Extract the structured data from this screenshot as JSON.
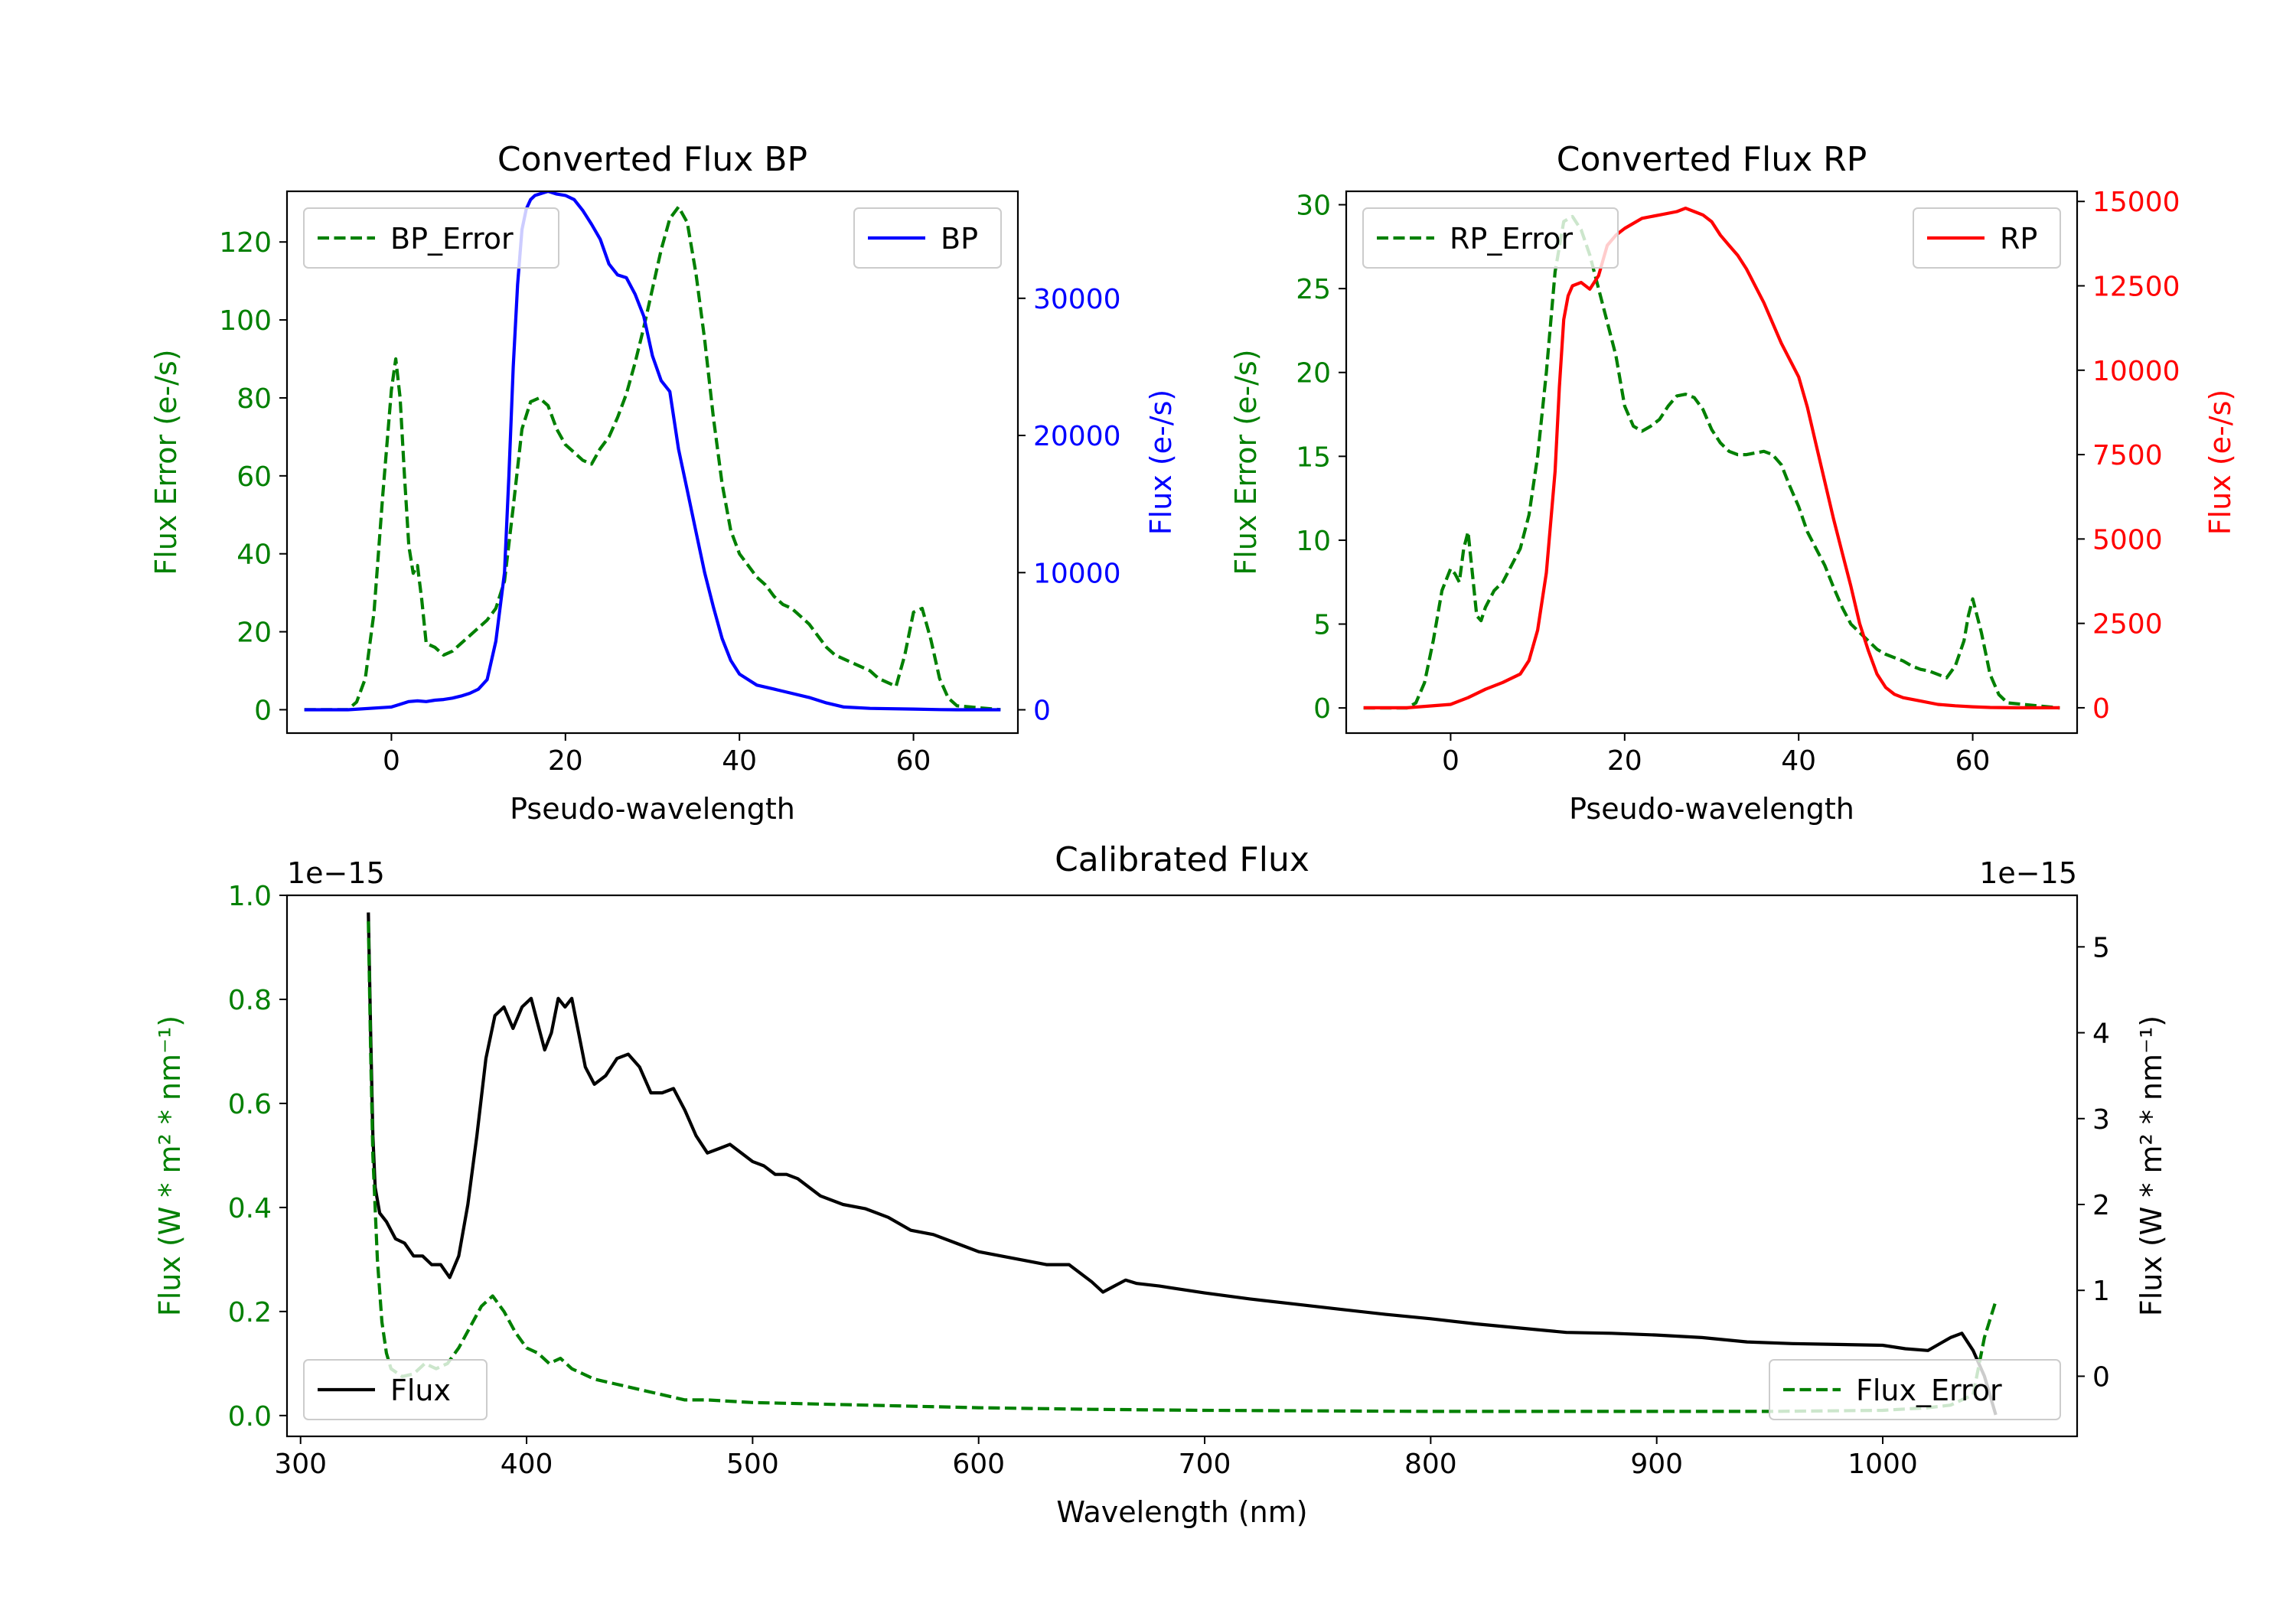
{
  "colors": {
    "green": "#008000",
    "blue": "#0000ff",
    "red": "#ff0000",
    "black": "#000000"
  },
  "chart_data": [
    {
      "id": "bp",
      "type": "line",
      "title": "Converted Flux BP",
      "xlabel": "Pseudo-wavelength",
      "xlim": [
        -12,
        72
      ],
      "xticks": [
        0,
        20,
        40,
        60
      ],
      "xtick_labels": [
        "0",
        "20",
        "40",
        "60"
      ],
      "left_axis": {
        "label": "Flux Error (e-/s)",
        "color": "#008000",
        "ylim": [
          -6,
          133
        ],
        "ticks": [
          0,
          20,
          40,
          60,
          80,
          100,
          120
        ],
        "tick_labels": [
          "0",
          "20",
          "40",
          "60",
          "80",
          "100",
          "120"
        ]
      },
      "right_axis": {
        "label": "Flux (e-/s)",
        "color": "#0000ff",
        "ylim": [
          -1700,
          37800
        ],
        "ticks": [
          0,
          10000,
          20000,
          30000
        ],
        "tick_labels": [
          "0",
          "10000",
          "20000",
          "30000"
        ]
      },
      "series": [
        {
          "name": "BP_Error",
          "axis": "left",
          "style": "dashed",
          "color": "#008000",
          "x": [
            -10,
            -5,
            -4,
            -3,
            -2,
            -1,
            0,
            0.5,
            1,
            1.5,
            2,
            2.5,
            3,
            3.5,
            4,
            5,
            6,
            7,
            8,
            9,
            10,
            11,
            12,
            13,
            14,
            15,
            16,
            17,
            18,
            19,
            20,
            21,
            22,
            23,
            24,
            25,
            26,
            27,
            28,
            29,
            30,
            31,
            32,
            33,
            34,
            35,
            36,
            37,
            38,
            39,
            40,
            41,
            42,
            43,
            44,
            45,
            46,
            47,
            48,
            49,
            50,
            51,
            52,
            53,
            54,
            55,
            56,
            57,
            58,
            59,
            60,
            61,
            62,
            63,
            64,
            65,
            70
          ],
          "values": [
            0,
            0,
            2,
            8,
            25,
            55,
            82,
            90,
            80,
            60,
            42,
            35,
            37,
            28,
            17,
            16,
            14,
            15,
            17,
            19,
            21,
            23,
            26,
            33,
            52,
            72,
            79,
            80,
            78,
            72,
            68,
            66,
            64,
            63,
            67,
            70,
            75,
            81,
            89,
            98,
            108,
            118,
            126,
            129,
            125,
            112,
            95,
            75,
            58,
            46,
            40,
            37,
            34,
            32,
            29,
            27,
            26,
            24,
            22,
            19,
            16,
            14,
            13,
            12,
            11,
            10,
            8,
            7,
            6,
            14,
            25,
            26,
            18,
            8,
            3,
            1,
            0
          ]
        },
        {
          "name": "BP",
          "axis": "right",
          "style": "solid",
          "color": "#0000ff",
          "x": [
            -10,
            -5,
            0,
            1,
            2,
            3,
            4,
            5,
            6,
            7,
            8,
            9,
            10,
            11,
            12,
            13,
            13.5,
            14,
            14.5,
            15,
            15.5,
            16,
            16.5,
            17,
            18,
            19,
            20,
            21,
            22,
            23,
            24,
            25,
            26,
            27,
            28,
            29,
            30,
            31,
            32,
            33,
            34,
            35,
            36,
            37,
            38,
            39,
            40,
            42,
            44,
            46,
            48,
            50,
            52,
            55,
            60,
            63,
            65,
            70
          ],
          "values": [
            0,
            0,
            200,
            400,
            600,
            650,
            600,
            700,
            750,
            850,
            1000,
            1200,
            1500,
            2200,
            5000,
            10000,
            17000,
            25000,
            31000,
            35000,
            36500,
            37200,
            37500,
            37600,
            37800,
            37600,
            37500,
            37200,
            36400,
            35400,
            34300,
            32500,
            31700,
            31500,
            30300,
            28700,
            25800,
            24000,
            23200,
            19000,
            16000,
            13000,
            10000,
            7500,
            5200,
            3600,
            2600,
            1800,
            1500,
            1200,
            900,
            500,
            200,
            100,
            50,
            10,
            0,
            0
          ]
        }
      ],
      "legends": [
        {
          "entries": [
            "BP_Error"
          ],
          "position": "upper left"
        },
        {
          "entries": [
            "BP"
          ],
          "position": "upper right"
        }
      ]
    },
    {
      "id": "rp",
      "type": "line",
      "title": "Converted Flux RP",
      "xlabel": "Pseudo-wavelength",
      "xlim": [
        -12,
        72
      ],
      "xticks": [
        0,
        20,
        40,
        60
      ],
      "xtick_labels": [
        "0",
        "20",
        "40",
        "60"
      ],
      "left_axis": {
        "label": "Flux Error (e-/s)",
        "color": "#008000",
        "ylim": [
          -1.5,
          30.8
        ],
        "ticks": [
          0,
          5,
          10,
          15,
          20,
          25,
          30
        ],
        "tick_labels": [
          "0",
          "5",
          "10",
          "15",
          "20",
          "25",
          "30"
        ]
      },
      "right_axis": {
        "label": "Flux (e-/s)",
        "color": "#ff0000",
        "ylim": [
          -750,
          15300
        ],
        "ticks": [
          0,
          2500,
          5000,
          7500,
          10000,
          12500,
          15000
        ],
        "tick_labels": [
          "0",
          "2500",
          "5000",
          "7500",
          "10000",
          "12500",
          "15000"
        ]
      },
      "series": [
        {
          "name": "RP_Error",
          "axis": "left",
          "style": "dashed",
          "color": "#008000",
          "x": [
            -10,
            -5,
            -4,
            -3,
            -2,
            -1,
            0,
            0.5,
            1,
            1.5,
            2,
            2.5,
            3,
            3.5,
            4,
            5,
            6,
            7,
            8,
            9,
            10,
            11,
            12,
            13,
            14,
            15,
            16,
            17,
            18,
            19,
            20,
            21,
            22,
            23,
            24,
            25,
            26,
            27,
            28,
            29,
            30,
            31,
            32,
            33,
            34,
            35,
            36,
            37,
            38,
            39,
            40,
            41,
            42,
            43,
            44,
            45,
            46,
            47,
            48,
            49,
            50,
            51,
            52,
            53,
            54,
            55,
            56,
            57,
            58,
            59,
            59.5,
            60,
            61,
            62,
            63,
            64,
            70
          ],
          "values": [
            0,
            0,
            0.3,
            1.5,
            4,
            7,
            8.3,
            8,
            7.5,
            9.5,
            10.5,
            8,
            5.5,
            5.2,
            6,
            7,
            7.5,
            8.5,
            9.5,
            11.5,
            15,
            20,
            26,
            29,
            29.3,
            28.5,
            27,
            25,
            23,
            21,
            18,
            16.8,
            16.5,
            16.8,
            17.2,
            18,
            18.6,
            18.7,
            18.5,
            17.8,
            16.6,
            15.8,
            15.3,
            15.1,
            15.1,
            15.2,
            15.3,
            15.1,
            14.5,
            13.2,
            12,
            10.5,
            9.5,
            8.5,
            7.2,
            6,
            5,
            4.5,
            4,
            3.5,
            3.2,
            3,
            2.8,
            2.5,
            2.3,
            2.2,
            2,
            1.8,
            2.5,
            4,
            5.5,
            6.5,
            4.5,
            2,
            0.8,
            0.3,
            0
          ]
        },
        {
          "name": "RP",
          "axis": "right",
          "style": "solid",
          "color": "#ff0000",
          "x": [
            -10,
            -5,
            0,
            2,
            4,
            6,
            8,
            9,
            10,
            11,
            12,
            12.5,
            13,
            13.5,
            14,
            15,
            16,
            17,
            18,
            19,
            20,
            22,
            24,
            26,
            27,
            28,
            29,
            30,
            31,
            32,
            33,
            34,
            36,
            38,
            40,
            41,
            42,
            43,
            44,
            45,
            46,
            47,
            48,
            49,
            50,
            51,
            52,
            54,
            56,
            58,
            60,
            62,
            65,
            70
          ],
          "values": [
            0,
            0,
            100,
            300,
            550,
            750,
            1000,
            1400,
            2300,
            4000,
            7000,
            9500,
            11500,
            12200,
            12500,
            12600,
            12400,
            12800,
            13700,
            14000,
            14200,
            14500,
            14600,
            14700,
            14800,
            14700,
            14600,
            14400,
            14000,
            13700,
            13400,
            13000,
            12000,
            10800,
            9800,
            8900,
            7800,
            6700,
            5600,
            4600,
            3600,
            2500,
            1700,
            1000,
            600,
            400,
            300,
            200,
            100,
            60,
            30,
            10,
            0,
            0
          ]
        }
      ],
      "legends": [
        {
          "entries": [
            "RP_Error"
          ],
          "position": "upper left"
        },
        {
          "entries": [
            "RP"
          ],
          "position": "upper right"
        }
      ]
    },
    {
      "id": "cal",
      "type": "line",
      "title": "Calibrated Flux",
      "xlabel": "Wavelength (nm)",
      "xlim": [
        294,
        1086
      ],
      "xticks": [
        300,
        400,
        500,
        600,
        700,
        800,
        900,
        1000
      ],
      "xtick_labels": [
        "300",
        "400",
        "500",
        "600",
        "700",
        "800",
        "900",
        "1000"
      ],
      "left_axis": {
        "label": "Flux (W * m² * nm⁻¹)",
        "color": "#008000",
        "offset_text": "1e−15",
        "ylim": [
          -0.04,
          1.0
        ],
        "ticks": [
          0.0,
          0.2,
          0.4,
          0.6,
          0.8,
          1.0
        ],
        "tick_labels": [
          "0.0",
          "0.2",
          "0.4",
          "0.6",
          "0.8",
          "1.0"
        ]
      },
      "right_axis": {
        "label": "Flux (W * m² * nm⁻¹)",
        "color": "#000000",
        "offset_text": "1e−15",
        "ylim": [
          -0.7,
          5.6
        ],
        "ticks": [
          0,
          1,
          2,
          3,
          4,
          5
        ],
        "tick_labels": [
          "0",
          "1",
          "2",
          "3",
          "4",
          "5"
        ]
      },
      "series": [
        {
          "name": "Flux",
          "axis": "right",
          "style": "solid",
          "color": "#000000",
          "x": [
            330,
            331,
            332,
            333,
            335,
            338,
            342,
            346,
            350,
            354,
            358,
            362,
            366,
            370,
            374,
            378,
            382,
            386,
            390,
            394,
            398,
            402,
            405,
            408,
            411,
            414,
            417,
            420,
            423,
            426,
            430,
            435,
            440,
            445,
            450,
            455,
            460,
            465,
            470,
            475,
            480,
            485,
            490,
            495,
            500,
            505,
            510,
            515,
            520,
            525,
            530,
            540,
            550,
            560,
            570,
            580,
            590,
            600,
            610,
            620,
            630,
            640,
            645,
            650,
            655,
            660,
            665,
            670,
            680,
            700,
            720,
            740,
            760,
            780,
            800,
            820,
            840,
            860,
            880,
            900,
            920,
            940,
            960,
            980,
            1000,
            1010,
            1020,
            1030,
            1035,
            1040,
            1045,
            1050
          ],
          "values": [
            5.4,
            4.0,
            2.8,
            2.2,
            1.9,
            1.8,
            1.6,
            1.55,
            1.4,
            1.4,
            1.3,
            1.3,
            1.15,
            1.4,
            2.0,
            2.8,
            3.7,
            4.2,
            4.3,
            4.05,
            4.3,
            4.4,
            4.1,
            3.8,
            4.0,
            4.4,
            4.3,
            4.4,
            4.0,
            3.6,
            3.4,
            3.5,
            3.7,
            3.75,
            3.6,
            3.3,
            3.3,
            3.35,
            3.1,
            2.8,
            2.6,
            2.65,
            2.7,
            2.6,
            2.5,
            2.45,
            2.35,
            2.35,
            2.3,
            2.2,
            2.1,
            2.0,
            1.95,
            1.85,
            1.7,
            1.65,
            1.55,
            1.45,
            1.4,
            1.35,
            1.3,
            1.3,
            1.2,
            1.1,
            0.98,
            1.05,
            1.12,
            1.08,
            1.05,
            0.97,
            0.9,
            0.84,
            0.78,
            0.72,
            0.67,
            0.61,
            0.56,
            0.51,
            0.5,
            0.48,
            0.45,
            0.4,
            0.38,
            0.37,
            0.36,
            0.32,
            0.3,
            0.45,
            0.5,
            0.3,
            0.0,
            -0.45
          ]
        },
        {
          "name": "Flux_Error",
          "axis": "left",
          "style": "dashed",
          "color": "#008000",
          "x": [
            330,
            331,
            332,
            334,
            336,
            338,
            340,
            345,
            350,
            355,
            360,
            365,
            370,
            375,
            380,
            385,
            390,
            395,
            400,
            405,
            410,
            415,
            420,
            425,
            430,
            440,
            450,
            460,
            470,
            480,
            500,
            550,
            600,
            650,
            700,
            750,
            800,
            850,
            900,
            950,
            1000,
            1020,
            1030,
            1040,
            1045,
            1050
          ],
          "values": [
            0.95,
            0.7,
            0.5,
            0.3,
            0.18,
            0.12,
            0.09,
            0.075,
            0.08,
            0.1,
            0.09,
            0.1,
            0.13,
            0.17,
            0.21,
            0.23,
            0.2,
            0.16,
            0.13,
            0.12,
            0.1,
            0.11,
            0.09,
            0.08,
            0.07,
            0.06,
            0.05,
            0.04,
            0.03,
            0.03,
            0.025,
            0.02,
            0.015,
            0.012,
            0.01,
            0.009,
            0.008,
            0.008,
            0.008,
            0.008,
            0.01,
            0.015,
            0.02,
            0.04,
            0.15,
            0.22
          ]
        }
      ],
      "legends": [
        {
          "entries": [
            "Flux"
          ],
          "position": "lower left"
        },
        {
          "entries": [
            "Flux_Error"
          ],
          "position": "lower right"
        }
      ]
    }
  ]
}
